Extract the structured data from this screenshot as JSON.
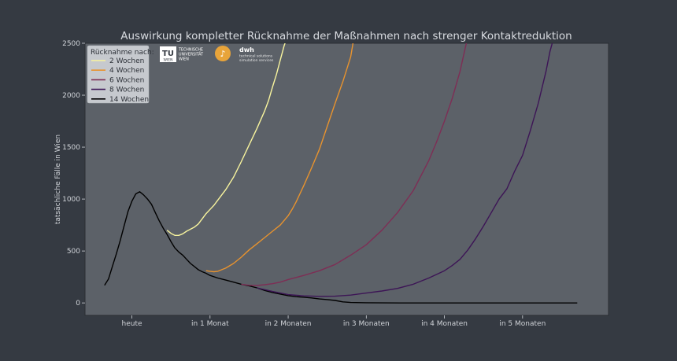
{
  "chart_data": {
    "type": "line",
    "title": "Auswirkung kompletter Rücknahme der Maßnahmen nach strenger Kontaktreduktion",
    "ylabel": "tatsächliche Fälle in Wien",
    "xlabel": "",
    "ylim": [
      -120,
      2500
    ],
    "xlim": [
      -0.6,
      6.1
    ],
    "y_ticks": [
      0,
      500,
      1000,
      1500,
      2000,
      2500
    ],
    "x_ticks": [
      {
        "value": 0,
        "label": "heute"
      },
      {
        "value": 1,
        "label": "in 1 Monat"
      },
      {
        "value": 2,
        "label": "in 2 Monaten"
      },
      {
        "value": 3,
        "label": "in 3 Monaten"
      },
      {
        "value": 4,
        "label": "in 4 Monaten"
      },
      {
        "value": 5,
        "label": "in 5 Monaten"
      }
    ],
    "grid": false,
    "legend": {
      "title": "Rücknahme nach:",
      "position": "top-left"
    },
    "series": [
      {
        "name": "14 Wochen",
        "color": "#000000",
        "points": [
          [
            -0.35,
            170
          ],
          [
            -0.3,
            230
          ],
          [
            -0.25,
            350
          ],
          [
            -0.2,
            470
          ],
          [
            -0.15,
            600
          ],
          [
            -0.1,
            740
          ],
          [
            -0.05,
            880
          ],
          [
            0,
            980
          ],
          [
            0.05,
            1050
          ],
          [
            0.1,
            1070
          ],
          [
            0.15,
            1040
          ],
          [
            0.2,
            1000
          ],
          [
            0.25,
            950
          ],
          [
            0.3,
            870
          ],
          [
            0.35,
            790
          ],
          [
            0.4,
            720
          ],
          [
            0.45,
            660
          ],
          [
            0.5,
            590
          ],
          [
            0.55,
            530
          ],
          [
            0.6,
            490
          ],
          [
            0.65,
            460
          ],
          [
            0.7,
            420
          ],
          [
            0.75,
            380
          ],
          [
            0.8,
            350
          ],
          [
            0.85,
            320
          ],
          [
            0.9,
            300
          ],
          [
            0.95,
            285
          ],
          [
            1,
            265
          ],
          [
            1.1,
            240
          ],
          [
            1.2,
            220
          ],
          [
            1.3,
            200
          ],
          [
            1.4,
            180
          ],
          [
            1.5,
            165
          ],
          [
            1.6,
            145
          ],
          [
            1.7,
            120
          ],
          [
            1.8,
            100
          ],
          [
            1.9,
            85
          ],
          [
            2,
            70
          ],
          [
            2.1,
            60
          ],
          [
            2.2,
            55
          ],
          [
            2.3,
            48
          ],
          [
            2.4,
            38
          ],
          [
            2.5,
            32
          ],
          [
            2.6,
            24
          ],
          [
            2.7,
            10
          ],
          [
            2.8,
            4
          ],
          [
            3,
            2
          ],
          [
            3.5,
            0
          ],
          [
            4,
            0
          ],
          [
            4.5,
            0
          ],
          [
            5,
            0
          ],
          [
            5.5,
            0
          ],
          [
            5.7,
            0
          ]
        ]
      },
      {
        "name": "8 Wochen",
        "color": "#3d1556",
        "points": [
          [
            1.6,
            145
          ],
          [
            1.8,
            110
          ],
          [
            2,
            80
          ],
          [
            2.2,
            68
          ],
          [
            2.4,
            63
          ],
          [
            2.6,
            65
          ],
          [
            2.8,
            75
          ],
          [
            3,
            95
          ],
          [
            3.2,
            115
          ],
          [
            3.4,
            140
          ],
          [
            3.6,
            180
          ],
          [
            3.8,
            240
          ],
          [
            4,
            310
          ],
          [
            4.1,
            360
          ],
          [
            4.2,
            420
          ],
          [
            4.3,
            510
          ],
          [
            4.4,
            620
          ],
          [
            4.5,
            740
          ],
          [
            4.6,
            870
          ],
          [
            4.7,
            1000
          ],
          [
            4.8,
            1100
          ],
          [
            4.9,
            1270
          ],
          [
            5,
            1420
          ],
          [
            5.1,
            1660
          ],
          [
            5.2,
            1920
          ],
          [
            5.3,
            2230
          ],
          [
            5.35,
            2420
          ],
          [
            5.38,
            2500
          ]
        ]
      },
      {
        "name": "6 Wochen",
        "color": "#7e2e55",
        "points": [
          [
            1.4,
            180
          ],
          [
            1.5,
            170
          ],
          [
            1.6,
            168
          ],
          [
            1.7,
            175
          ],
          [
            1.8,
            185
          ],
          [
            1.9,
            200
          ],
          [
            2,
            225
          ],
          [
            2.2,
            265
          ],
          [
            2.4,
            310
          ],
          [
            2.6,
            370
          ],
          [
            2.8,
            460
          ],
          [
            3,
            560
          ],
          [
            3.2,
            700
          ],
          [
            3.4,
            870
          ],
          [
            3.6,
            1080
          ],
          [
            3.8,
            1370
          ],
          [
            3.9,
            1550
          ],
          [
            4,
            1750
          ],
          [
            4.1,
            1970
          ],
          [
            4.2,
            2230
          ],
          [
            4.25,
            2400
          ],
          [
            4.28,
            2500
          ]
        ]
      },
      {
        "name": "4 Wochen",
        "color": "#e8932e",
        "points": [
          [
            0.95,
            310
          ],
          [
            1,
            305
          ],
          [
            1.05,
            300
          ],
          [
            1.1,
            305
          ],
          [
            1.2,
            335
          ],
          [
            1.3,
            380
          ],
          [
            1.4,
            440
          ],
          [
            1.5,
            510
          ],
          [
            1.6,
            570
          ],
          [
            1.7,
            630
          ],
          [
            1.8,
            690
          ],
          [
            1.9,
            750
          ],
          [
            2,
            840
          ],
          [
            2.05,
            900
          ],
          [
            2.1,
            970
          ],
          [
            2.2,
            1130
          ],
          [
            2.3,
            1300
          ],
          [
            2.4,
            1480
          ],
          [
            2.5,
            1700
          ],
          [
            2.6,
            1920
          ],
          [
            2.7,
            2130
          ],
          [
            2.8,
            2370
          ],
          [
            2.83,
            2500
          ]
        ]
      },
      {
        "name": "2 Wochen",
        "color": "#f8f49e",
        "points": [
          [
            0.45,
            700
          ],
          [
            0.5,
            670
          ],
          [
            0.55,
            650
          ],
          [
            0.6,
            650
          ],
          [
            0.65,
            665
          ],
          [
            0.7,
            690
          ],
          [
            0.75,
            710
          ],
          [
            0.8,
            730
          ],
          [
            0.85,
            760
          ],
          [
            0.9,
            810
          ],
          [
            0.95,
            860
          ],
          [
            1,
            900
          ],
          [
            1.05,
            940
          ],
          [
            1.1,
            990
          ],
          [
            1.2,
            1090
          ],
          [
            1.3,
            1210
          ],
          [
            1.4,
            1360
          ],
          [
            1.5,
            1520
          ],
          [
            1.6,
            1680
          ],
          [
            1.7,
            1850
          ],
          [
            1.75,
            1950
          ],
          [
            1.8,
            2080
          ],
          [
            1.85,
            2200
          ],
          [
            1.9,
            2340
          ],
          [
            1.95,
            2480
          ],
          [
            1.96,
            2500
          ]
        ]
      }
    ]
  },
  "logos": {
    "tu_letters": "TU",
    "tu_sub": "WIEN",
    "tu_line1": "TECHNISCHE",
    "tu_line2": "UNIVERSITÄT",
    "tu_line3": "WIEN",
    "dwh_name": "dwh",
    "dwh_line1": "technical solutions",
    "dwh_line2": "simulation services"
  },
  "colors": {
    "background": "#353a42",
    "plot_area": "#5c6168",
    "legend_bg": "#c6c9ce"
  }
}
